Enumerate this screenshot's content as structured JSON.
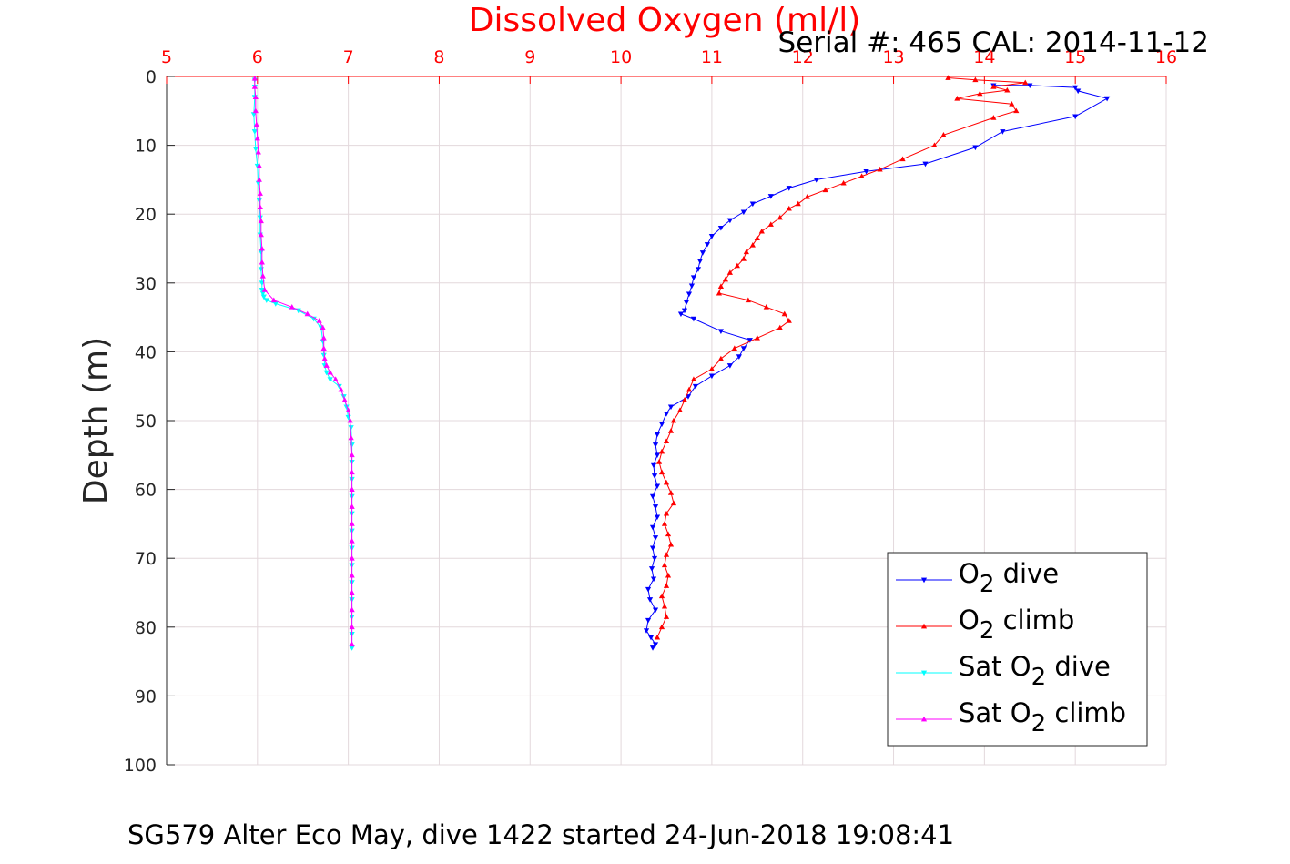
{
  "chart_data": {
    "type": "line",
    "title": "Dissolved Oxygen (ml/l)",
    "subtitle": "Serial #: 465  CAL: 2014-11-12",
    "footer": "SG579 Alter Eco May, dive 1422 started 24-Jun-2018 19:08:41",
    "ylabel": "Depth (m)",
    "xlabel": "",
    "xlim": [
      5,
      16
    ],
    "ylim": [
      0,
      100
    ],
    "y_reversed": true,
    "x_axis_position": "top",
    "grid": true,
    "legend_position": "bottom-right",
    "xticks": [
      "5",
      "6",
      "7",
      "8",
      "9",
      "10",
      "11",
      "12",
      "13",
      "14",
      "15",
      "16"
    ],
    "yticks": [
      "0",
      "10",
      "20",
      "30",
      "40",
      "50",
      "60",
      "70",
      "80",
      "90",
      "100"
    ],
    "colors": {
      "title": "#ff0000",
      "x_tick": "#ff0000",
      "grid": "#e3d8dc"
    },
    "series": [
      {
        "name": "O2 dive",
        "legend_base": "O",
        "legend_sub": "2",
        "legend_tail": " dive",
        "color": "#0000ff",
        "marker": "triangle-down",
        "x": [
          14.1,
          14.5,
          15.0,
          15.03,
          15.35,
          15.0,
          14.2,
          13.9,
          13.35,
          12.7,
          12.15,
          11.85,
          11.65,
          11.45,
          11.35,
          11.2,
          11.1,
          11.0,
          10.95,
          10.9,
          10.87,
          10.85,
          10.8,
          10.78,
          10.75,
          10.72,
          10.7,
          10.66,
          10.8,
          11.1,
          11.42,
          11.35,
          11.3,
          11.2,
          11.0,
          10.82,
          10.74,
          10.55,
          10.5,
          10.45,
          10.4,
          10.38,
          10.4,
          10.36,
          10.37,
          10.4,
          10.35,
          10.38,
          10.4,
          10.35,
          10.38,
          10.35,
          10.37,
          10.34,
          10.36,
          10.3,
          10.32,
          10.38,
          10.3,
          10.28,
          10.33,
          10.38,
          10.35
        ],
        "y": [
          1.3,
          1.3,
          1.6,
          2.1,
          3.2,
          5.8,
          8.0,
          10.3,
          12.7,
          13.8,
          15.0,
          16.2,
          17.4,
          18.5,
          19.7,
          20.9,
          22.0,
          23.2,
          24.4,
          25.6,
          26.8,
          28.0,
          29.2,
          30.4,
          31.6,
          32.8,
          34.0,
          34.5,
          35.2,
          37.0,
          38.3,
          39.5,
          40.7,
          42.0,
          43.5,
          45.0,
          46.5,
          48.0,
          49.0,
          50.5,
          52.0,
          53.5,
          55.0,
          56.5,
          58.0,
          59.5,
          61.0,
          62.5,
          64.0,
          65.5,
          67.0,
          68.5,
          70.0,
          71.5,
          73.0,
          74.5,
          76.0,
          77.5,
          79.0,
          80.5,
          81.5,
          82.5,
          83.0
        ]
      },
      {
        "name": "O2 climb",
        "legend_base": "O",
        "legend_sub": "2",
        "legend_tail": " climb",
        "color": "#ff0000",
        "marker": "triangle-up",
        "x": [
          13.6,
          13.9,
          14.45,
          14.1,
          14.25,
          13.95,
          13.7,
          14.3,
          14.35,
          14.1,
          13.55,
          13.45,
          13.1,
          12.85,
          12.65,
          12.45,
          12.25,
          12.05,
          11.95,
          11.85,
          11.75,
          11.65,
          11.55,
          11.5,
          11.45,
          11.38,
          11.35,
          11.28,
          11.2,
          11.15,
          11.1,
          11.08,
          11.4,
          11.6,
          11.8,
          11.85,
          11.75,
          11.5,
          11.25,
          11.1,
          11.0,
          10.8,
          10.75,
          10.7,
          10.65,
          10.58,
          10.55,
          10.5,
          10.45,
          10.42,
          10.45,
          10.5,
          10.55,
          10.58,
          10.5,
          10.48,
          10.52,
          10.55,
          10.5,
          10.48,
          10.52,
          10.5,
          10.45,
          10.48,
          10.5,
          10.45,
          10.4
        ],
        "y": [
          0.2,
          0.5,
          0.9,
          1.5,
          2.0,
          2.5,
          3.2,
          4.0,
          5.0,
          6.0,
          8.5,
          10.0,
          12.0,
          13.5,
          14.5,
          15.5,
          16.5,
          17.5,
          18.5,
          19.2,
          20.5,
          21.5,
          22.5,
          23.5,
          24.5,
          25.5,
          26.5,
          27.5,
          28.5,
          29.5,
          30.5,
          31.5,
          32.5,
          33.5,
          34.5,
          35.5,
          36.5,
          38.0,
          39.5,
          41.0,
          42.5,
          44.0,
          45.5,
          47.0,
          48.5,
          50.0,
          51.5,
          53.0,
          54.5,
          56.0,
          57.5,
          59.0,
          60.5,
          62.0,
          63.5,
          65.0,
          66.5,
          68.0,
          69.5,
          71.0,
          72.5,
          74.0,
          75.5,
          77.0,
          78.5,
          80.0,
          81.5
        ]
      },
      {
        "name": "Sat O2 dive",
        "legend_base": "Sat O",
        "legend_sub": "2",
        "legend_tail": " dive",
        "color": "#00ffff",
        "marker": "triangle-down",
        "x": [
          5.97,
          5.97,
          5.97,
          5.96,
          5.97,
          5.98,
          6.0,
          6.01,
          6.02,
          6.03,
          6.03,
          6.04,
          6.04,
          6.05,
          6.05,
          6.06,
          6.07,
          6.1,
          6.2,
          6.45,
          6.62,
          6.7,
          6.72,
          6.73,
          6.74,
          6.76,
          6.8,
          6.9,
          6.95,
          6.98,
          7.0,
          7.03,
          7.04,
          7.04,
          7.04,
          7.04,
          7.04,
          7.04,
          7.04,
          7.04,
          7.04,
          7.04,
          7.04,
          7.04,
          7.04
        ],
        "y": [
          0.5,
          1.5,
          3.0,
          5.5,
          8.0,
          10.5,
          13.0,
          15.5,
          18.0,
          20.5,
          23.0,
          25.5,
          28.0,
          30.0,
          31.0,
          31.5,
          32.0,
          32.5,
          33.0,
          34.0,
          35.2,
          36.5,
          38.5,
          40.5,
          42.0,
          43.0,
          44.0,
          45.0,
          46.5,
          48.0,
          49.5,
          51.0,
          53.5,
          56.0,
          58.5,
          61.0,
          63.5,
          66.0,
          68.5,
          71.0,
          73.5,
          76.0,
          78.5,
          81.0,
          83.0
        ]
      },
      {
        "name": "Sat O2 climb",
        "legend_base": "Sat O",
        "legend_sub": "2",
        "legend_tail": " climb",
        "color": "#ff00ff",
        "marker": "triangle-up",
        "x": [
          5.97,
          5.97,
          5.98,
          5.98,
          5.99,
          6.0,
          6.01,
          6.02,
          6.02,
          6.03,
          6.03,
          6.04,
          6.04,
          6.05,
          6.05,
          6.06,
          6.08,
          6.18,
          6.38,
          6.55,
          6.68,
          6.72,
          6.73,
          6.73,
          6.74,
          6.76,
          6.8,
          6.86,
          6.92,
          6.96,
          7.0,
          7.02,
          7.03,
          7.04,
          7.04,
          7.04,
          7.04,
          7.04,
          7.04,
          7.04,
          7.04,
          7.04,
          7.04,
          7.04,
          7.04
        ],
        "y": [
          0.3,
          1.5,
          3.0,
          5.0,
          7.0,
          9.0,
          11.0,
          13.0,
          15.0,
          17.0,
          19.0,
          21.0,
          23.0,
          25.0,
          27.0,
          29.0,
          31.0,
          32.5,
          33.5,
          34.5,
          35.5,
          36.5,
          38.0,
          39.5,
          41.0,
          42.0,
          43.0,
          44.0,
          45.5,
          47.0,
          48.5,
          50.0,
          52.5,
          55.0,
          57.5,
          60.0,
          62.5,
          65.0,
          67.5,
          70.0,
          72.5,
          75.0,
          77.5,
          80.0,
          82.5
        ]
      }
    ]
  }
}
